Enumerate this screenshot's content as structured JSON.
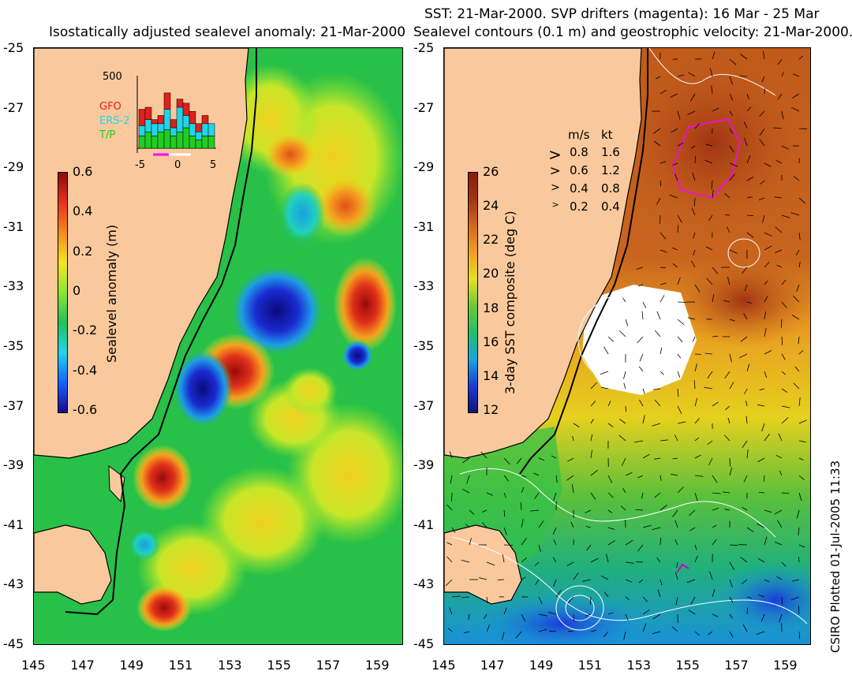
{
  "left_panel": {
    "title": "Isostatically adjusted sealevel anomaly: 21-Mar-2000",
    "colorbar_label": "Sealevel anomaly (m)",
    "colorbar_ticks": [
      "0.6",
      "0.4",
      "0.2",
      "0",
      "-0.2",
      "-0.4",
      "-0.6"
    ],
    "colorbar_colors": [
      "#1a0a8c",
      "#1464ff",
      "#21d4e8",
      "#22c05a",
      "#8ee632",
      "#f5e61e",
      "#f58a1e",
      "#e8321e",
      "#8c0a0a"
    ],
    "inset": {
      "ymax_label": "500",
      "sat_labels": [
        {
          "name": "GFO",
          "color": "#e0201a"
        },
        {
          "name": "ERS-2",
          "color": "#21d4e8"
        },
        {
          "name": "T/P",
          "color": "#22cc22"
        }
      ],
      "x_ticks": [
        "-5",
        "0",
        "5"
      ]
    }
  },
  "right_panel": {
    "title_line1": "SST: 21-Mar-2000. SVP drifters (magenta): 16 Mar - 25 Mar",
    "title_line2": "Sealevel contours (0.1 m) and geostrophic velocity: 21-Mar-2000.",
    "colorbar_label": "3-day SST composite (deg C)",
    "colorbar_ticks": [
      "26",
      "24",
      "22",
      "20",
      "18",
      "16",
      "14",
      "12"
    ],
    "colorbar_colors": [
      "#10127a",
      "#1a3cd8",
      "#18a6e0",
      "#22c06a",
      "#6ec832",
      "#e6e01e",
      "#f0a020",
      "#d06a1a",
      "#a03414",
      "#8a1a0a"
    ],
    "velocity_legend": {
      "header_ms": "m/s",
      "header_kt": "kt",
      "rows": [
        {
          "ms": "0.8",
          "kt": "1.6"
        },
        {
          "ms": "0.6",
          "kt": "1.2"
        },
        {
          "ms": "0.4",
          "kt": "0.8"
        },
        {
          "ms": "0.2",
          "kt": "0.4"
        }
      ]
    }
  },
  "axes": {
    "y_ticks": [
      "-25",
      "-27",
      "-29",
      "-31",
      "-33",
      "-35",
      "-37",
      "-39",
      "-41",
      "-43",
      "-45"
    ],
    "x_ticks": [
      "145",
      "147",
      "149",
      "151",
      "153",
      "155",
      "157",
      "159"
    ]
  },
  "colors": {
    "land": "#f9c99d",
    "coast": "#000000"
  },
  "stamp": "CSIRO Plotted 01-Jul-2005 11:33"
}
